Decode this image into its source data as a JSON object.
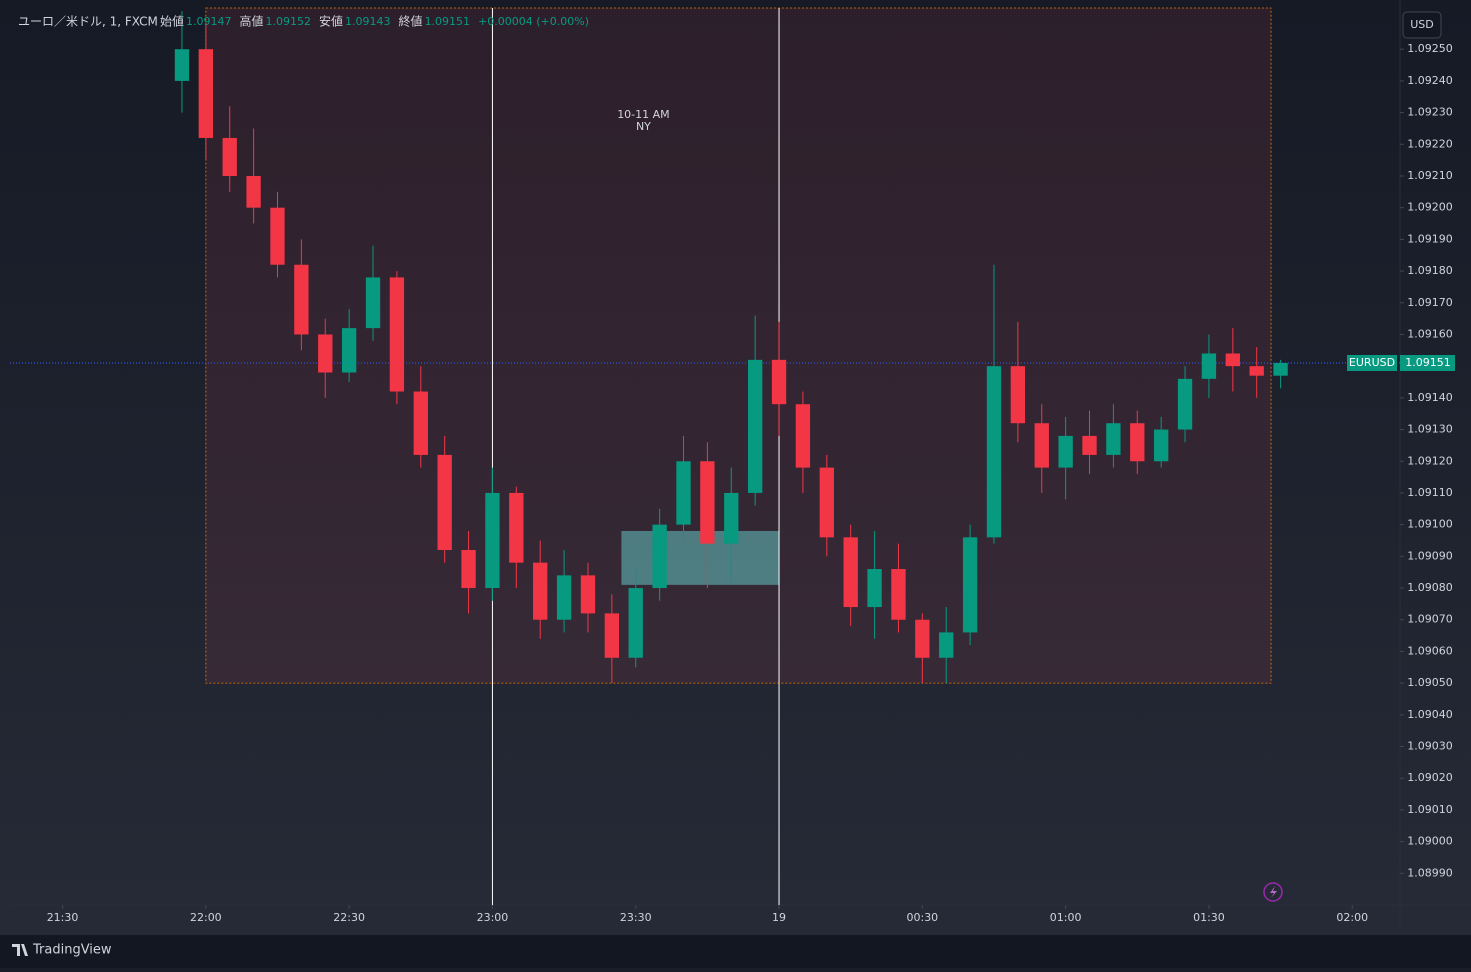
{
  "chart_data": {
    "type": "candlestick",
    "symbol": "ユーロ／米ドル, 1, FXCM",
    "ohlc_labels": [
      "始値",
      "高値",
      "安値",
      "終値"
    ],
    "ohlc_values": [
      1.09147,
      1.09152,
      1.09143,
      1.09151
    ],
    "change_label": "+0.00004 (+0.00%)",
    "currency": "USD",
    "price_tag": {
      "name": "EURUSD",
      "value": 1.09151,
      "color": "#089981"
    },
    "up_color": "#089981",
    "down_color": "#f23645",
    "x": [
      "21:55",
      "22:00",
      "22:05",
      "22:10",
      "22:15",
      "22:20",
      "22:25",
      "22:30",
      "22:35",
      "22:40",
      "22:45",
      "22:50",
      "22:55",
      "23:00",
      "23:05",
      "23:10",
      "23:15",
      "23:20",
      "23:25",
      "23:30",
      "23:35",
      "23:40",
      "23:45",
      "23:50",
      "23:55",
      "00:00",
      "00:05",
      "00:10",
      "00:15",
      "00:20",
      "00:25",
      "00:30",
      "00:35",
      "00:40",
      "00:45",
      "00:50",
      "00:55",
      "01:00",
      "01:05",
      "01:10",
      "01:15",
      "01:20",
      "01:25",
      "01:30",
      "01:35",
      "01:40",
      "01:45"
    ],
    "open": [
      1.0924,
      1.0925,
      1.09222,
      1.0921,
      1.092,
      1.09182,
      1.0916,
      1.09148,
      1.09162,
      1.09178,
      1.09142,
      1.09122,
      1.09092,
      1.0908,
      1.0911,
      1.09088,
      1.0907,
      1.09084,
      1.09072,
      1.09058,
      1.0908,
      1.091,
      1.0912,
      1.09094,
      1.0911,
      1.09152,
      1.09138,
      1.09118,
      1.09096,
      1.09074,
      1.09086,
      1.0907,
      1.09058,
      1.09066,
      1.09096,
      1.0915,
      1.09132,
      1.09118,
      1.09128,
      1.09122,
      1.09132,
      1.0912,
      1.0913,
      1.09146,
      1.09154,
      1.0915,
      1.09147
    ],
    "high": [
      1.09262,
      1.09258,
      1.09232,
      1.09225,
      1.09205,
      1.0919,
      1.09165,
      1.09168,
      1.09188,
      1.0918,
      1.0915,
      1.09128,
      1.09098,
      1.09118,
      1.09112,
      1.09095,
      1.09092,
      1.09088,
      1.09078,
      1.09086,
      1.09105,
      1.09128,
      1.09126,
      1.09118,
      1.09166,
      1.09164,
      1.09142,
      1.09122,
      1.091,
      1.09098,
      1.09094,
      1.09072,
      1.09074,
      1.091,
      1.09182,
      1.09164,
      1.09138,
      1.09134,
      1.09136,
      1.09138,
      1.09136,
      1.09134,
      1.0915,
      1.0916,
      1.09162,
      1.09156,
      1.09152
    ],
    "low": [
      1.0923,
      1.09215,
      1.09205,
      1.09195,
      1.09178,
      1.09155,
      1.0914,
      1.09145,
      1.09158,
      1.09138,
      1.09118,
      1.09088,
      1.09072,
      1.09076,
      1.0908,
      1.09064,
      1.09066,
      1.09066,
      1.0905,
      1.09055,
      1.09076,
      1.09095,
      1.0908,
      1.09082,
      1.09106,
      1.09128,
      1.0911,
      1.0909,
      1.09068,
      1.09064,
      1.09066,
      1.0905,
      1.0905,
      1.09062,
      1.09094,
      1.09126,
      1.0911,
      1.09108,
      1.09116,
      1.09118,
      1.09116,
      1.09118,
      1.09126,
      1.0914,
      1.09142,
      1.0914,
      1.09143
    ],
    "close": [
      1.0925,
      1.09222,
      1.0921,
      1.092,
      1.09182,
      1.0916,
      1.09148,
      1.09162,
      1.09178,
      1.09142,
      1.09122,
      1.09092,
      1.0908,
      1.0911,
      1.09088,
      1.0907,
      1.09084,
      1.09072,
      1.09058,
      1.0908,
      1.091,
      1.0912,
      1.09094,
      1.0911,
      1.09152,
      1.09138,
      1.09118,
      1.09096,
      1.09074,
      1.09086,
      1.0907,
      1.09058,
      1.09066,
      1.09096,
      1.0915,
      1.09132,
      1.09118,
      1.09128,
      1.09122,
      1.09132,
      1.0912,
      1.0913,
      1.09146,
      1.09154,
      1.0915,
      1.09147,
      1.09151
    ],
    "xlim": [
      "21:19",
      "02:10"
    ],
    "xticks": [
      "21:30",
      "22:00",
      "22:30",
      "23:00",
      "23:30",
      {
        "value": "00:00",
        "label": "19"
      },
      "00:30",
      "01:00",
      "01:30",
      "02:00"
    ],
    "ylim": [
      1.0898,
      1.09263
    ],
    "yticks": [
      {
        "value": 1.0899,
        "label": "1.08990"
      },
      {
        "value": 1.09,
        "label": "1.09000"
      },
      {
        "value": 1.0901,
        "label": "1.09010"
      },
      {
        "value": 1.0902,
        "label": "1.09020"
      },
      {
        "value": 1.0903,
        "label": "1.09030"
      },
      {
        "value": 1.0904,
        "label": "1.09040"
      },
      {
        "value": 1.0905,
        "label": "1.09050"
      },
      {
        "value": 1.0906,
        "label": "1.09060"
      },
      {
        "value": 1.0907,
        "label": "1.09070"
      },
      {
        "value": 1.0908,
        "label": "1.09080"
      },
      {
        "value": 1.0909,
        "label": "1.09090"
      },
      {
        "value": 1.091,
        "label": "1.09100"
      },
      {
        "value": 1.0911,
        "label": "1.09110"
      },
      {
        "value": 1.0912,
        "label": "1.09120"
      },
      {
        "value": 1.0913,
        "label": "1.09130"
      },
      {
        "value": 1.0914,
        "label": "1.09140"
      },
      {
        "value": 1.0915,
        "label": "1.09150"
      },
      {
        "value": 1.0916,
        "label": "1.09160"
      },
      {
        "value": 1.0917,
        "label": "1.09170"
      },
      {
        "value": 1.0918,
        "label": "1.09180"
      },
      {
        "value": 1.0919,
        "label": "1.09190"
      },
      {
        "value": 1.092,
        "label": "1.09200"
      },
      {
        "value": 1.0921,
        "label": "1.09210"
      },
      {
        "value": 1.0922,
        "label": "1.09220"
      },
      {
        "value": 1.0923,
        "label": "1.09230"
      },
      {
        "value": 1.0924,
        "label": "1.09240"
      },
      {
        "value": 1.0925,
        "label": "1.09250"
      }
    ],
    "session_box": {
      "label": [
        "10-11 AM",
        "NY"
      ],
      "start": "22:00",
      "end": "01:43",
      "low": 1.0905,
      "color": "#f7525f"
    },
    "zone": {
      "start": "23:27",
      "end": "00:00",
      "low": 1.09081,
      "high": 1.09098,
      "color": "#5fb6b6"
    },
    "vlines": [
      "23:00",
      "00:00"
    ],
    "brand": "TradingView"
  }
}
